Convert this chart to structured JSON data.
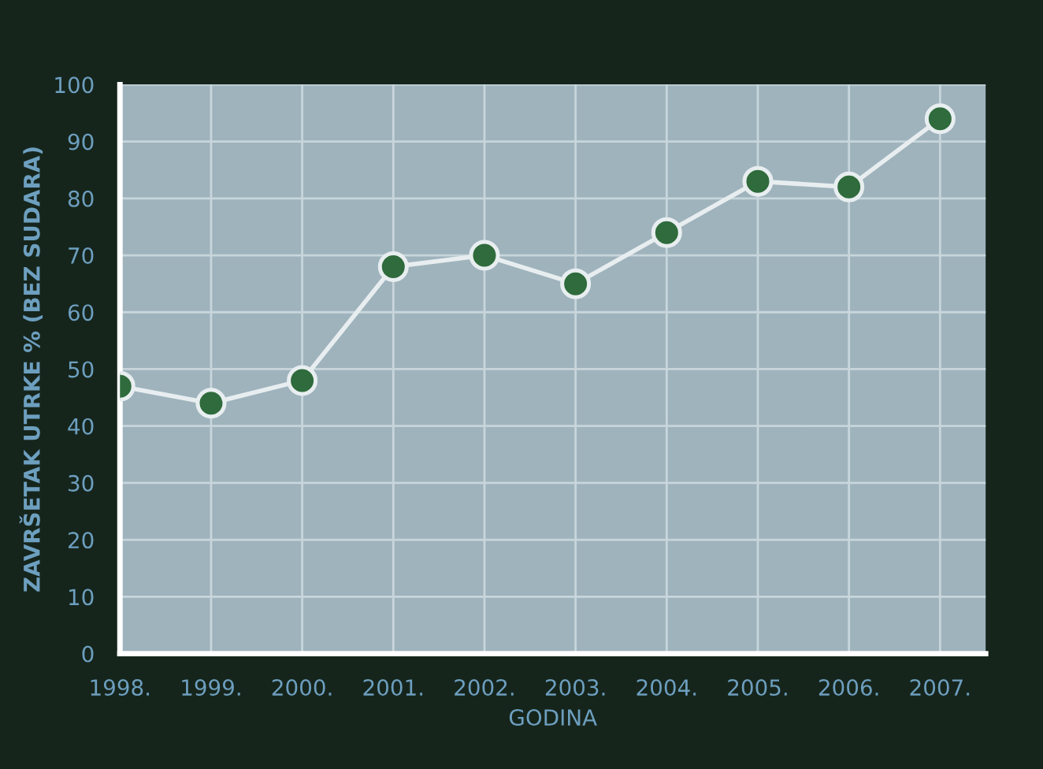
{
  "chart_data": {
    "type": "line",
    "xlabel": "GODINA",
    "ylabel": "ZAVRŠETAK UTRKE % (BEZ SUDARA)",
    "categories": [
      "1998.",
      "1999.",
      "2000.",
      "2001.",
      "2002.",
      "2003.",
      "2004.",
      "2005.",
      "2006.",
      "2007."
    ],
    "series": [
      {
        "color": "#2f6b3c",
        "values": [
          47,
          44,
          48,
          68,
          70,
          65,
          74,
          83,
          82,
          94
        ]
      }
    ],
    "ylim": [
      0,
      100
    ],
    "yticks": [
      0,
      10,
      20,
      30,
      40,
      50,
      60,
      70,
      80,
      90,
      100
    ],
    "grid": true,
    "marker": "circle",
    "line_style": "solid"
  }
}
